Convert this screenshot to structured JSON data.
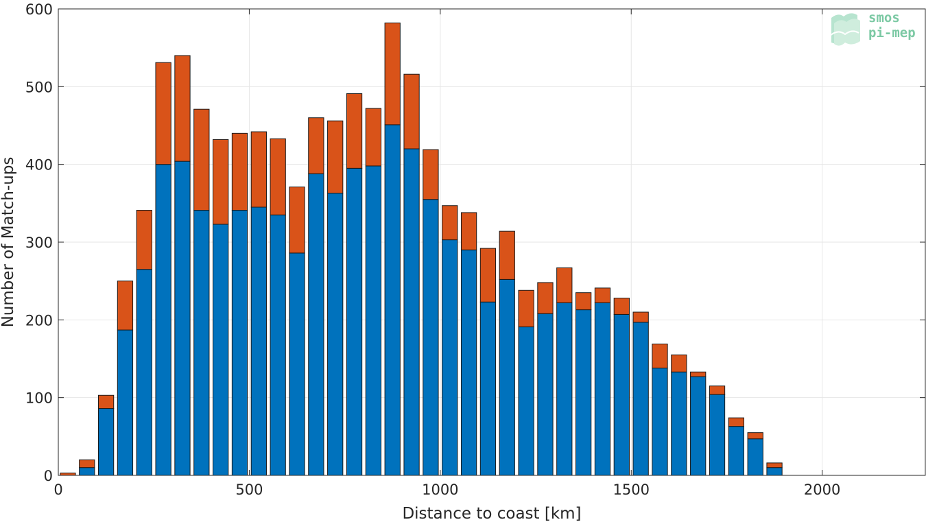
{
  "chart_data": {
    "type": "bar",
    "stacked": true,
    "xlabel": "Distance to coast [km]",
    "ylabel": "Number of Match-ups",
    "xlim": [
      0,
      2270
    ],
    "ylim": [
      0,
      600
    ],
    "xticks": [
      0,
      500,
      1000,
      1500,
      2000
    ],
    "yticks": [
      0,
      100,
      200,
      300,
      400,
      500,
      600
    ],
    "grid": true,
    "bar_width": 40,
    "x": [
      25,
      75,
      125,
      175,
      225,
      275,
      325,
      375,
      425,
      475,
      525,
      575,
      625,
      675,
      725,
      775,
      825,
      875,
      925,
      975,
      1025,
      1075,
      1125,
      1175,
      1225,
      1275,
      1325,
      1375,
      1425,
      1475,
      1525,
      1575,
      1625,
      1675,
      1725,
      1775,
      1825,
      1875
    ],
    "series": [
      {
        "color": "#0072bd",
        "values": [
          0,
          10,
          86,
          187,
          265,
          400,
          404,
          341,
          323,
          341,
          345,
          335,
          286,
          388,
          363,
          395,
          398,
          451,
          420,
          355,
          303,
          290,
          223,
          252,
          191,
          208,
          222,
          213,
          222,
          207,
          197,
          138,
          133,
          127,
          104,
          63,
          47,
          10
        ]
      },
      {
        "color": "#d95319",
        "values": [
          3,
          10,
          17,
          63,
          76,
          131,
          136,
          130,
          109,
          99,
          97,
          98,
          85,
          72,
          93,
          96,
          74,
          131,
          96,
          64,
          44,
          48,
          69,
          62,
          47,
          40,
          45,
          22,
          19,
          21,
          13,
          31,
          22,
          6,
          11,
          11,
          8,
          6
        ]
      }
    ]
  },
  "logo": {
    "line1": "smos",
    "line2": "pi-mep"
  }
}
